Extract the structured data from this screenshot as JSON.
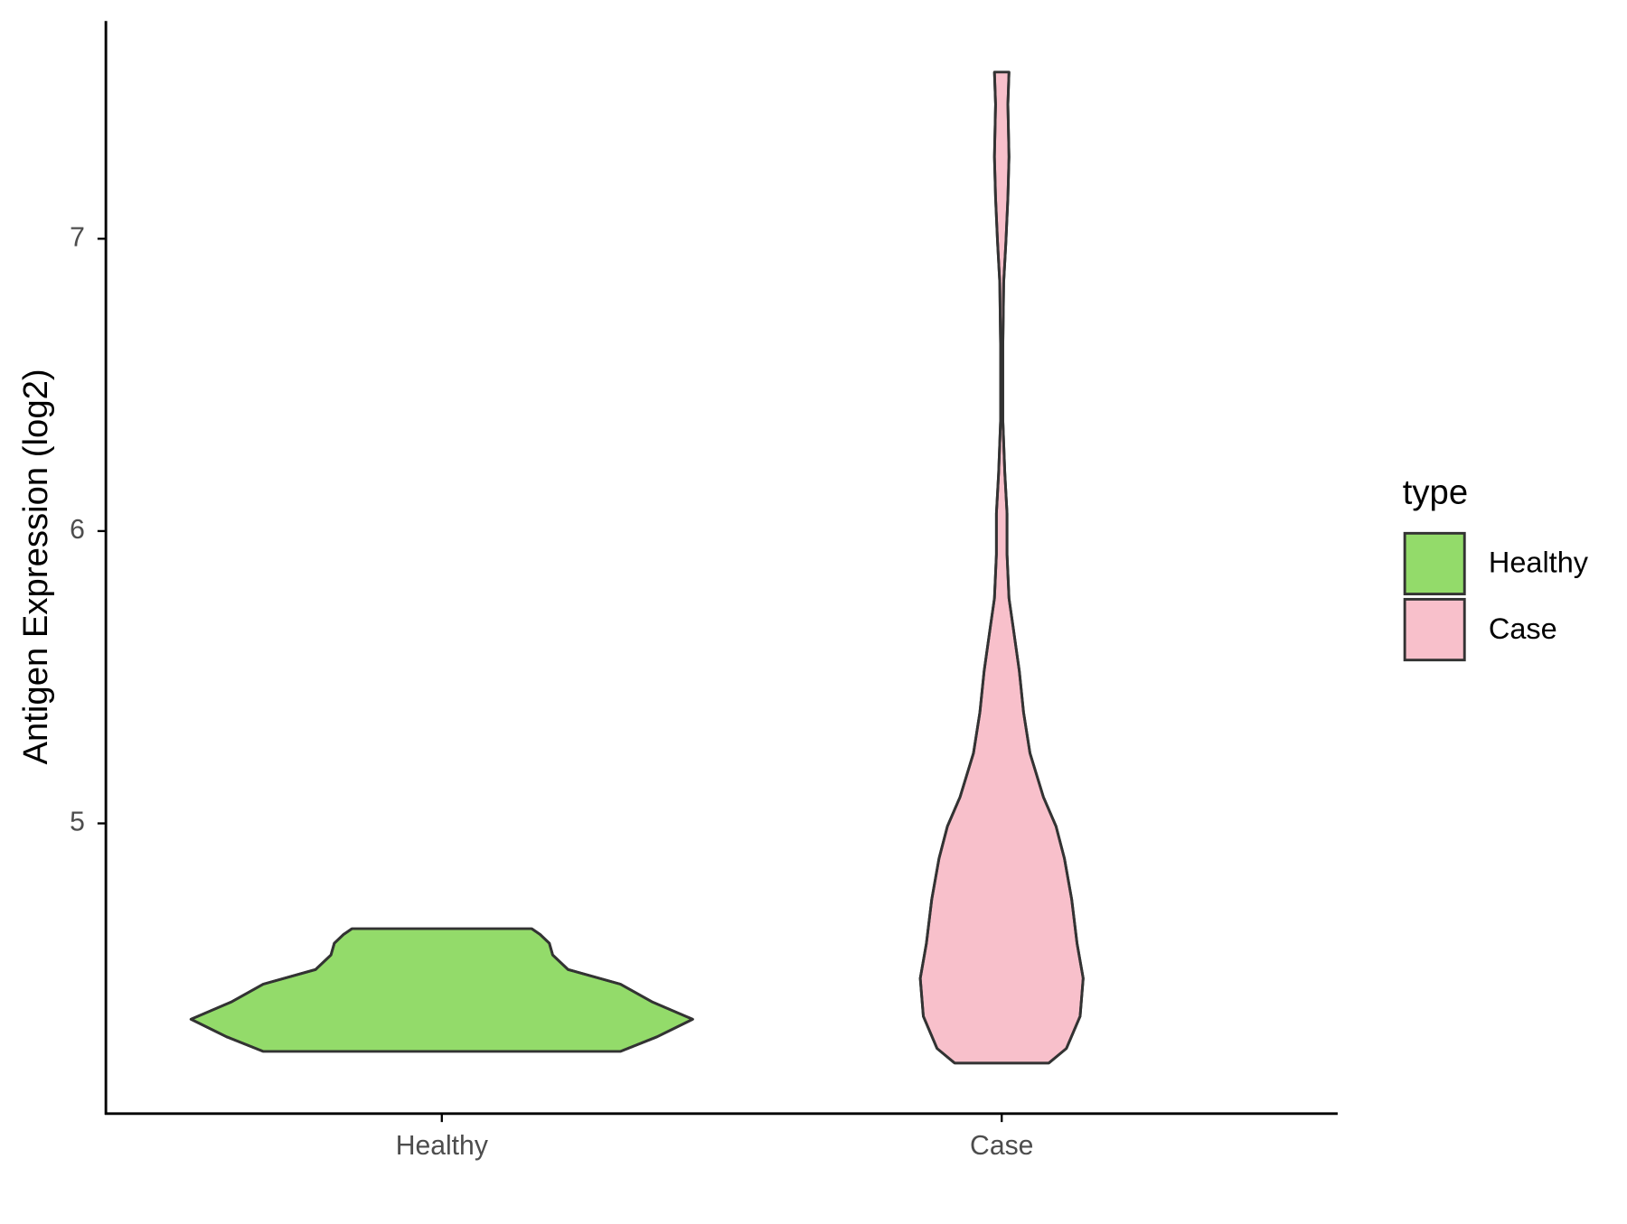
{
  "chart_data": {
    "type": "violin",
    "y_label": "Antigen Expression (log2)",
    "categories": [
      "Healthy",
      "Case"
    ],
    "legend_title": "type",
    "legend": "right",
    "series": [
      {
        "name": "Healthy",
        "color": "#93db6a",
        "y": [
          4.22,
          4.27,
          4.33,
          4.39,
          4.45,
          4.5,
          4.55,
          4.59,
          4.62,
          4.64
        ],
        "width": [
          0.638,
          0.769,
          0.896,
          0.75,
          0.638,
          0.451,
          0.396,
          0.384,
          0.351,
          0.321
        ]
      },
      {
        "name": "Case",
        "color": "#f8c0cb",
        "y": [
          4.18,
          4.23,
          4.34,
          4.47,
          4.59,
          4.74,
          4.88,
          4.99,
          5.09,
          5.24,
          5.38,
          5.52,
          5.67,
          5.77,
          5.92,
          6.06,
          6.2,
          6.38,
          6.63,
          6.85,
          6.99,
          7.14,
          7.28,
          7.46,
          7.57
        ],
        "width": [
          0.168,
          0.231,
          0.28,
          0.291,
          0.269,
          0.25,
          0.224,
          0.194,
          0.149,
          0.101,
          0.078,
          0.063,
          0.041,
          0.026,
          0.019,
          0.019,
          0.011,
          0.004,
          0.004,
          0.007,
          0.015,
          0.022,
          0.026,
          0.022,
          0.026
        ]
      }
    ],
    "ylim": [
      4.007,
      7.745
    ],
    "yticks": [
      5,
      6,
      7
    ]
  }
}
